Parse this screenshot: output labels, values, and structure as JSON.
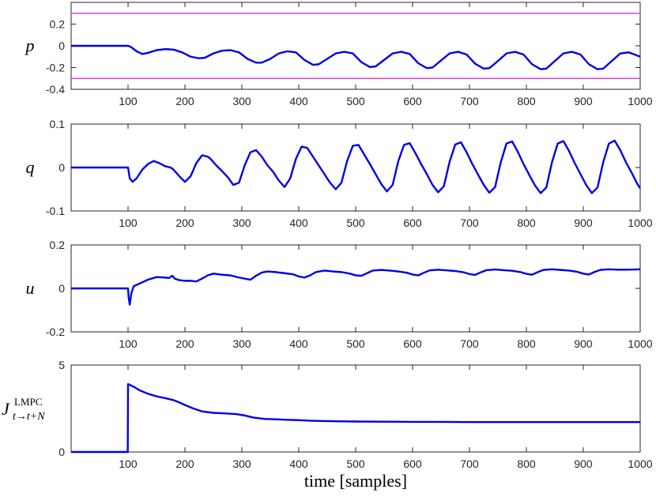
{
  "chart_data": [
    {
      "type": "line",
      "ylabel": "p",
      "ylim": [
        -0.4,
        0.4
      ],
      "yticks": [
        -0.4,
        -0.2,
        0,
        0.2
      ],
      "ytick_labels": [
        "-0.4",
        "-0.2",
        "0",
        "0.2"
      ],
      "xlim": [
        0,
        1000
      ],
      "xticks": [
        100,
        200,
        300,
        400,
        500,
        600,
        700,
        800,
        900,
        1000
      ],
      "xtick_labels": [
        "100",
        "200",
        "300",
        "400",
        "500",
        "600",
        "700",
        "800",
        "900",
        "1000"
      ],
      "series": [
        {
          "color": "#0000e6",
          "x": [
            0,
            100,
            105,
            115,
            125,
            135,
            150,
            165,
            180,
            195,
            210,
            225,
            235,
            250,
            265,
            280,
            295,
            310,
            325,
            335,
            350,
            365,
            380,
            395,
            410,
            425,
            435,
            450,
            465,
            480,
            495,
            510,
            525,
            535,
            550,
            565,
            580,
            595,
            610,
            625,
            635,
            650,
            665,
            680,
            695,
            710,
            725,
            735,
            750,
            765,
            780,
            795,
            810,
            825,
            835,
            850,
            865,
            880,
            895,
            910,
            925,
            935,
            950,
            965,
            980,
            995,
            1000
          ],
          "y": [
            0,
            0,
            -0.01,
            -0.05,
            -0.075,
            -0.065,
            -0.04,
            -0.03,
            -0.035,
            -0.06,
            -0.1,
            -0.115,
            -0.11,
            -0.07,
            -0.045,
            -0.04,
            -0.06,
            -0.12,
            -0.155,
            -0.155,
            -0.12,
            -0.07,
            -0.05,
            -0.06,
            -0.13,
            -0.175,
            -0.17,
            -0.12,
            -0.07,
            -0.055,
            -0.07,
            -0.15,
            -0.195,
            -0.19,
            -0.13,
            -0.07,
            -0.055,
            -0.075,
            -0.16,
            -0.205,
            -0.2,
            -0.135,
            -0.07,
            -0.055,
            -0.08,
            -0.165,
            -0.21,
            -0.205,
            -0.14,
            -0.07,
            -0.055,
            -0.08,
            -0.17,
            -0.215,
            -0.21,
            -0.14,
            -0.07,
            -0.055,
            -0.08,
            -0.17,
            -0.215,
            -0.21,
            -0.14,
            -0.07,
            -0.06,
            -0.09,
            -0.1
          ]
        }
      ],
      "hlines": [
        {
          "y": 0.3,
          "color": "#e040e0"
        },
        {
          "y": -0.3,
          "color": "#e040e0"
        }
      ]
    },
    {
      "type": "line",
      "ylabel": "q",
      "ylim": [
        -0.1,
        0.1
      ],
      "yticks": [
        -0.1,
        0,
        0.1
      ],
      "ytick_labels": [
        "-0.1",
        "0",
        "0.1"
      ],
      "xlim": [
        0,
        1000
      ],
      "xticks": [
        100,
        200,
        300,
        400,
        500,
        600,
        700,
        800,
        900,
        1000
      ],
      "xtick_labels": [
        "100",
        "200",
        "300",
        "400",
        "500",
        "600",
        "700",
        "800",
        "900",
        "1000"
      ],
      "series": [
        {
          "color": "#0000e6",
          "x": [
            0,
            100,
            103,
            108,
            115,
            125,
            135,
            145,
            155,
            165,
            175,
            180,
            190,
            200,
            210,
            220,
            230,
            240,
            245,
            255,
            265,
            275,
            285,
            295,
            305,
            315,
            325,
            335,
            345,
            355,
            365,
            375,
            385,
            395,
            405,
            415,
            425,
            435,
            445,
            455,
            465,
            475,
            485,
            495,
            505,
            515,
            525,
            535,
            545,
            555,
            565,
            575,
            585,
            595,
            605,
            615,
            625,
            635,
            645,
            655,
            665,
            675,
            685,
            695,
            705,
            715,
            725,
            735,
            745,
            755,
            765,
            775,
            785,
            795,
            805,
            815,
            825,
            835,
            845,
            855,
            865,
            875,
            885,
            895,
            905,
            915,
            925,
            935,
            945,
            955,
            965,
            975,
            985,
            995,
            1000
          ],
          "y": [
            0,
            0,
            -0.025,
            -0.033,
            -0.025,
            -0.005,
            0.008,
            0.015,
            0.01,
            0.003,
            0,
            -0.005,
            -0.02,
            -0.033,
            -0.02,
            0.01,
            0.028,
            0.025,
            0.02,
            0.005,
            -0.008,
            -0.022,
            -0.04,
            -0.035,
            0.005,
            0.035,
            0.04,
            0.025,
            0.005,
            -0.01,
            -0.03,
            -0.045,
            -0.025,
            0.02,
            0.048,
            0.045,
            0.025,
            0.005,
            -0.015,
            -0.035,
            -0.05,
            -0.035,
            0.015,
            0.05,
            0.052,
            0.03,
            0.008,
            -0.015,
            -0.038,
            -0.055,
            -0.04,
            0.015,
            0.052,
            0.056,
            0.033,
            0.008,
            -0.015,
            -0.04,
            -0.057,
            -0.043,
            0.013,
            0.053,
            0.058,
            0.035,
            0.008,
            -0.016,
            -0.04,
            -0.058,
            -0.045,
            0.012,
            0.055,
            0.06,
            0.036,
            0.008,
            -0.017,
            -0.041,
            -0.059,
            -0.046,
            0.012,
            0.055,
            0.061,
            0.038,
            0.01,
            -0.015,
            -0.04,
            -0.059,
            -0.046,
            0.012,
            0.055,
            0.062,
            0.04,
            0.012,
            -0.012,
            -0.038,
            -0.048
          ]
        }
      ]
    },
    {
      "type": "line",
      "ylabel": "u",
      "ylim": [
        -0.2,
        0.2
      ],
      "yticks": [
        -0.2,
        0,
        0.2
      ],
      "ytick_labels": [
        "-0.2",
        "0",
        "0.2"
      ],
      "xlim": [
        0,
        1000
      ],
      "xticks": [
        100,
        200,
        300,
        400,
        500,
        600,
        700,
        800,
        900,
        1000
      ],
      "xtick_labels": [
        "100",
        "200",
        "300",
        "400",
        "500",
        "600",
        "700",
        "800",
        "900",
        "1000"
      ],
      "series": [
        {
          "color": "#0000e6",
          "x": [
            0,
            100,
            101,
            103,
            106,
            110,
            120,
            135,
            150,
            165,
            172,
            178,
            182,
            190,
            200,
            210,
            220,
            230,
            240,
            250,
            265,
            280,
            295,
            305,
            315,
            325,
            335,
            345,
            360,
            375,
            390,
            400,
            410,
            420,
            430,
            445,
            460,
            475,
            490,
            500,
            510,
            520,
            530,
            545,
            560,
            575,
            590,
            600,
            610,
            620,
            630,
            645,
            660,
            675,
            690,
            700,
            710,
            720,
            730,
            745,
            760,
            775,
            790,
            800,
            810,
            820,
            830,
            845,
            860,
            875,
            890,
            900,
            910,
            920,
            930,
            945,
            960,
            975,
            990,
            1000
          ],
          "y": [
            0,
            0,
            -0.04,
            -0.075,
            -0.02,
            0.01,
            0.022,
            0.04,
            0.052,
            0.05,
            0.048,
            0.058,
            0.045,
            0.038,
            0.035,
            0.035,
            0.032,
            0.045,
            0.06,
            0.068,
            0.063,
            0.06,
            0.05,
            0.045,
            0.04,
            0.058,
            0.073,
            0.078,
            0.075,
            0.07,
            0.065,
            0.055,
            0.05,
            0.06,
            0.075,
            0.082,
            0.078,
            0.075,
            0.068,
            0.06,
            0.058,
            0.07,
            0.082,
            0.085,
            0.082,
            0.078,
            0.072,
            0.064,
            0.06,
            0.072,
            0.083,
            0.086,
            0.083,
            0.08,
            0.074,
            0.066,
            0.062,
            0.074,
            0.084,
            0.087,
            0.084,
            0.081,
            0.075,
            0.067,
            0.063,
            0.075,
            0.085,
            0.088,
            0.085,
            0.082,
            0.076,
            0.068,
            0.064,
            0.076,
            0.085,
            0.088,
            0.086,
            0.086,
            0.087,
            0.088
          ]
        }
      ]
    },
    {
      "type": "line",
      "ylabel": "J",
      "ylabel_superscript": "LMPC",
      "ylabel_subscript": "t→t+N",
      "xlabel": "time [samples]",
      "ylim": [
        0,
        5
      ],
      "yticks": [
        0,
        5
      ],
      "ytick_labels": [
        "0",
        "5"
      ],
      "xlim": [
        0,
        1000
      ],
      "xticks": [
        100,
        200,
        300,
        400,
        500,
        600,
        700,
        800,
        900,
        1000
      ],
      "xtick_labels": [
        "100",
        "200",
        "300",
        "400",
        "500",
        "600",
        "700",
        "800",
        "900",
        "1000"
      ],
      "series": [
        {
          "color": "#0000e6",
          "x": [
            0,
            99.5,
            100,
            102,
            110,
            120,
            135,
            150,
            165,
            180,
            190,
            200,
            215,
            230,
            250,
            270,
            290,
            305,
            320,
            340,
            360,
            380,
            400,
            420,
            440,
            460,
            480,
            500,
            550,
            600,
            650,
            700,
            750,
            800,
            850,
            900,
            950,
            1000
          ],
          "y": [
            0,
            0,
            3.9,
            3.88,
            3.75,
            3.55,
            3.35,
            3.2,
            3.1,
            2.98,
            2.85,
            2.7,
            2.5,
            2.33,
            2.25,
            2.22,
            2.18,
            2.1,
            1.98,
            1.9,
            1.88,
            1.85,
            1.83,
            1.8,
            1.78,
            1.77,
            1.76,
            1.75,
            1.74,
            1.73,
            1.73,
            1.72,
            1.72,
            1.72,
            1.72,
            1.72,
            1.72,
            1.72
          ]
        }
      ]
    }
  ]
}
